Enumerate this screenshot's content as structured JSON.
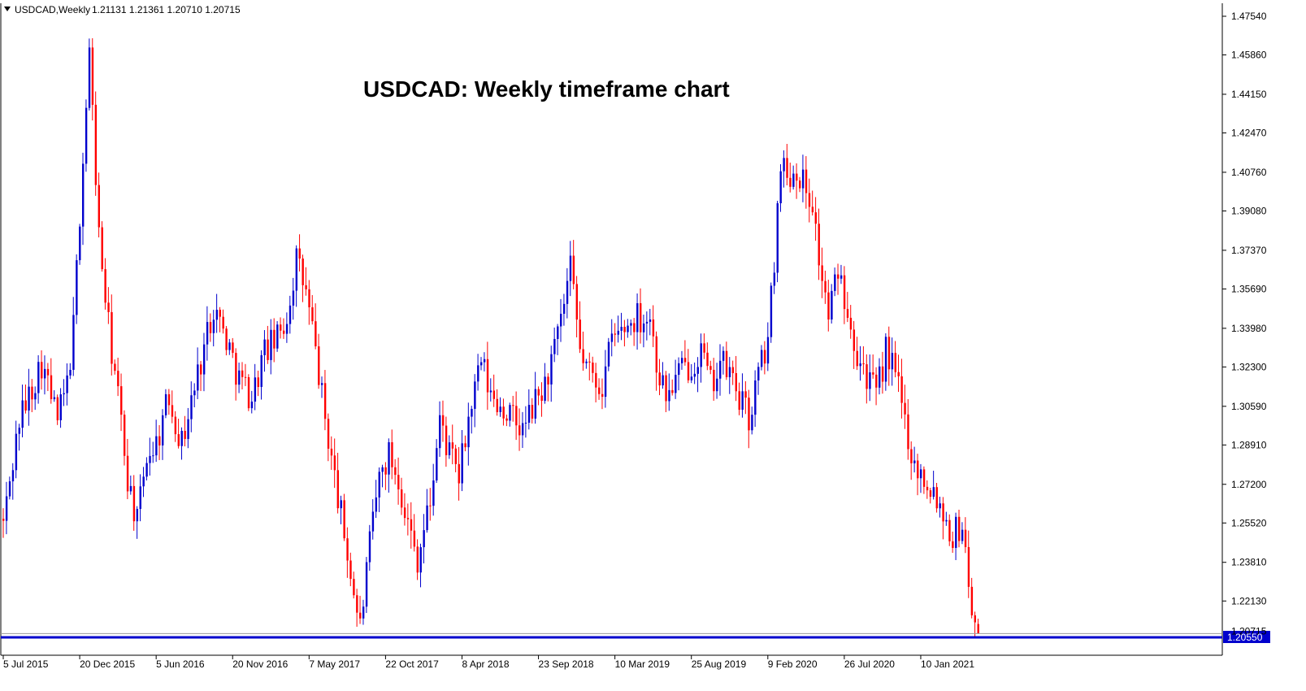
{
  "header": {
    "symbol": "USDCAD,Weekly",
    "ohlc": "1.21131 1.21361 1.20710 1.20715"
  },
  "colors": {
    "up": "#0000CD",
    "down": "#FF0000",
    "support_line": "#0000CD",
    "axis": "#000000",
    "background": "#FFFFFF"
  },
  "support_tag": "1.20550",
  "chart_data": {
    "type": "candlestick",
    "title": "USDCAD: Weekly timeframe chart",
    "ylim": [
      1.2055,
      1.4754
    ],
    "y_ticks": [
      1.4754,
      1.4586,
      1.4415,
      1.4247,
      1.4076,
      1.3908,
      1.3737,
      1.3569,
      1.3398,
      1.323,
      1.3059,
      1.2891,
      1.272,
      1.2552,
      1.2381,
      1.2213
    ],
    "y_tick_labels": [
      "1.47540",
      "1.45860",
      "1.44150",
      "1.42470",
      "1.40760",
      "1.39080",
      "1.37370",
      "1.35690",
      "1.33980",
      "1.32300",
      "1.30590",
      "1.28910",
      "1.27200",
      "1.25520",
      "1.23810",
      "1.22130"
    ],
    "current_price": 1.20715,
    "current_price_label": "1.20715",
    "support_level": 1.2055,
    "support_label": "1.20550",
    "x_tick_labels": [
      "5 Jul 2015",
      "20 Dec 2015",
      "5 Jun 2016",
      "20 Nov 2016",
      "7 May 2017",
      "22 Oct 2017",
      "8 Apr 2018",
      "23 Sep 2018",
      "10 Mar 2019",
      "25 Aug 2019",
      "9 Feb 2020",
      "26 Jul 2020",
      "10 Jan 2021"
    ],
    "x_tick_index": [
      0,
      24,
      48,
      72,
      96,
      120,
      144,
      168,
      192,
      216,
      240,
      264,
      288
    ],
    "anchors": [
      [
        0,
        1.255
      ],
      [
        5,
        1.3
      ],
      [
        12,
        1.325
      ],
      [
        17,
        1.3
      ],
      [
        20,
        1.315
      ],
      [
        22,
        1.34
      ],
      [
        24,
        1.39
      ],
      [
        27,
        1.46
      ],
      [
        30,
        1.38
      ],
      [
        33,
        1.34
      ],
      [
        36,
        1.31
      ],
      [
        39,
        1.275
      ],
      [
        42,
        1.255
      ],
      [
        45,
        1.285
      ],
      [
        48,
        1.29
      ],
      [
        52,
        1.31
      ],
      [
        56,
        1.29
      ],
      [
        61,
        1.32
      ],
      [
        66,
        1.35
      ],
      [
        70,
        1.335
      ],
      [
        74,
        1.318
      ],
      [
        78,
        1.31
      ],
      [
        82,
        1.33
      ],
      [
        86,
        1.335
      ],
      [
        89,
        1.345
      ],
      [
        92,
        1.37
      ],
      [
        95,
        1.355
      ],
      [
        98,
        1.33
      ],
      [
        101,
        1.3
      ],
      [
        104,
        1.275
      ],
      [
        107,
        1.25
      ],
      [
        110,
        1.225
      ],
      [
        112,
        1.21
      ],
      [
        115,
        1.245
      ],
      [
        118,
        1.275
      ],
      [
        121,
        1.285
      ],
      [
        124,
        1.275
      ],
      [
        127,
        1.255
      ],
      [
        130,
        1.24
      ],
      [
        134,
        1.265
      ],
      [
        137,
        1.3
      ],
      [
        140,
        1.285
      ],
      [
        143,
        1.275
      ],
      [
        146,
        1.3
      ],
      [
        150,
        1.325
      ],
      [
        153,
        1.31
      ],
      [
        157,
        1.305
      ],
      [
        160,
        1.3
      ],
      [
        163,
        1.295
      ],
      [
        166,
        1.305
      ],
      [
        170,
        1.315
      ],
      [
        174,
        1.335
      ],
      [
        178,
        1.365
      ],
      [
        181,
        1.33
      ],
      [
        184,
        1.32
      ],
      [
        188,
        1.315
      ],
      [
        191,
        1.335
      ],
      [
        195,
        1.34
      ],
      [
        199,
        1.345
      ],
      [
        203,
        1.345
      ],
      [
        205,
        1.325
      ],
      [
        208,
        1.31
      ],
      [
        212,
        1.32
      ],
      [
        216,
        1.325
      ],
      [
        219,
        1.33
      ],
      [
        222,
        1.315
      ],
      [
        225,
        1.325
      ],
      [
        228,
        1.32
      ],
      [
        231,
        1.31
      ],
      [
        234,
        1.3
      ],
      [
        237,
        1.32
      ],
      [
        240,
        1.335
      ],
      [
        242,
        1.37
      ],
      [
        244,
        1.415
      ],
      [
        246,
        1.405
      ],
      [
        249,
        1.41
      ],
      [
        252,
        1.4
      ],
      [
        254,
        1.395
      ],
      [
        256,
        1.37
      ],
      [
        259,
        1.345
      ],
      [
        262,
        1.365
      ],
      [
        265,
        1.35
      ],
      [
        268,
        1.33
      ],
      [
        271,
        1.32
      ],
      [
        274,
        1.31
      ],
      [
        277,
        1.33
      ],
      [
        280,
        1.32
      ],
      [
        283,
        1.3
      ],
      [
        286,
        1.28
      ],
      [
        289,
        1.275
      ],
      [
        292,
        1.27
      ],
      [
        295,
        1.26
      ],
      [
        298,
        1.25
      ],
      [
        301,
        1.255
      ],
      [
        303,
        1.23
      ],
      [
        305,
        1.21
      ],
      [
        306,
        1.2072
      ]
    ]
  }
}
